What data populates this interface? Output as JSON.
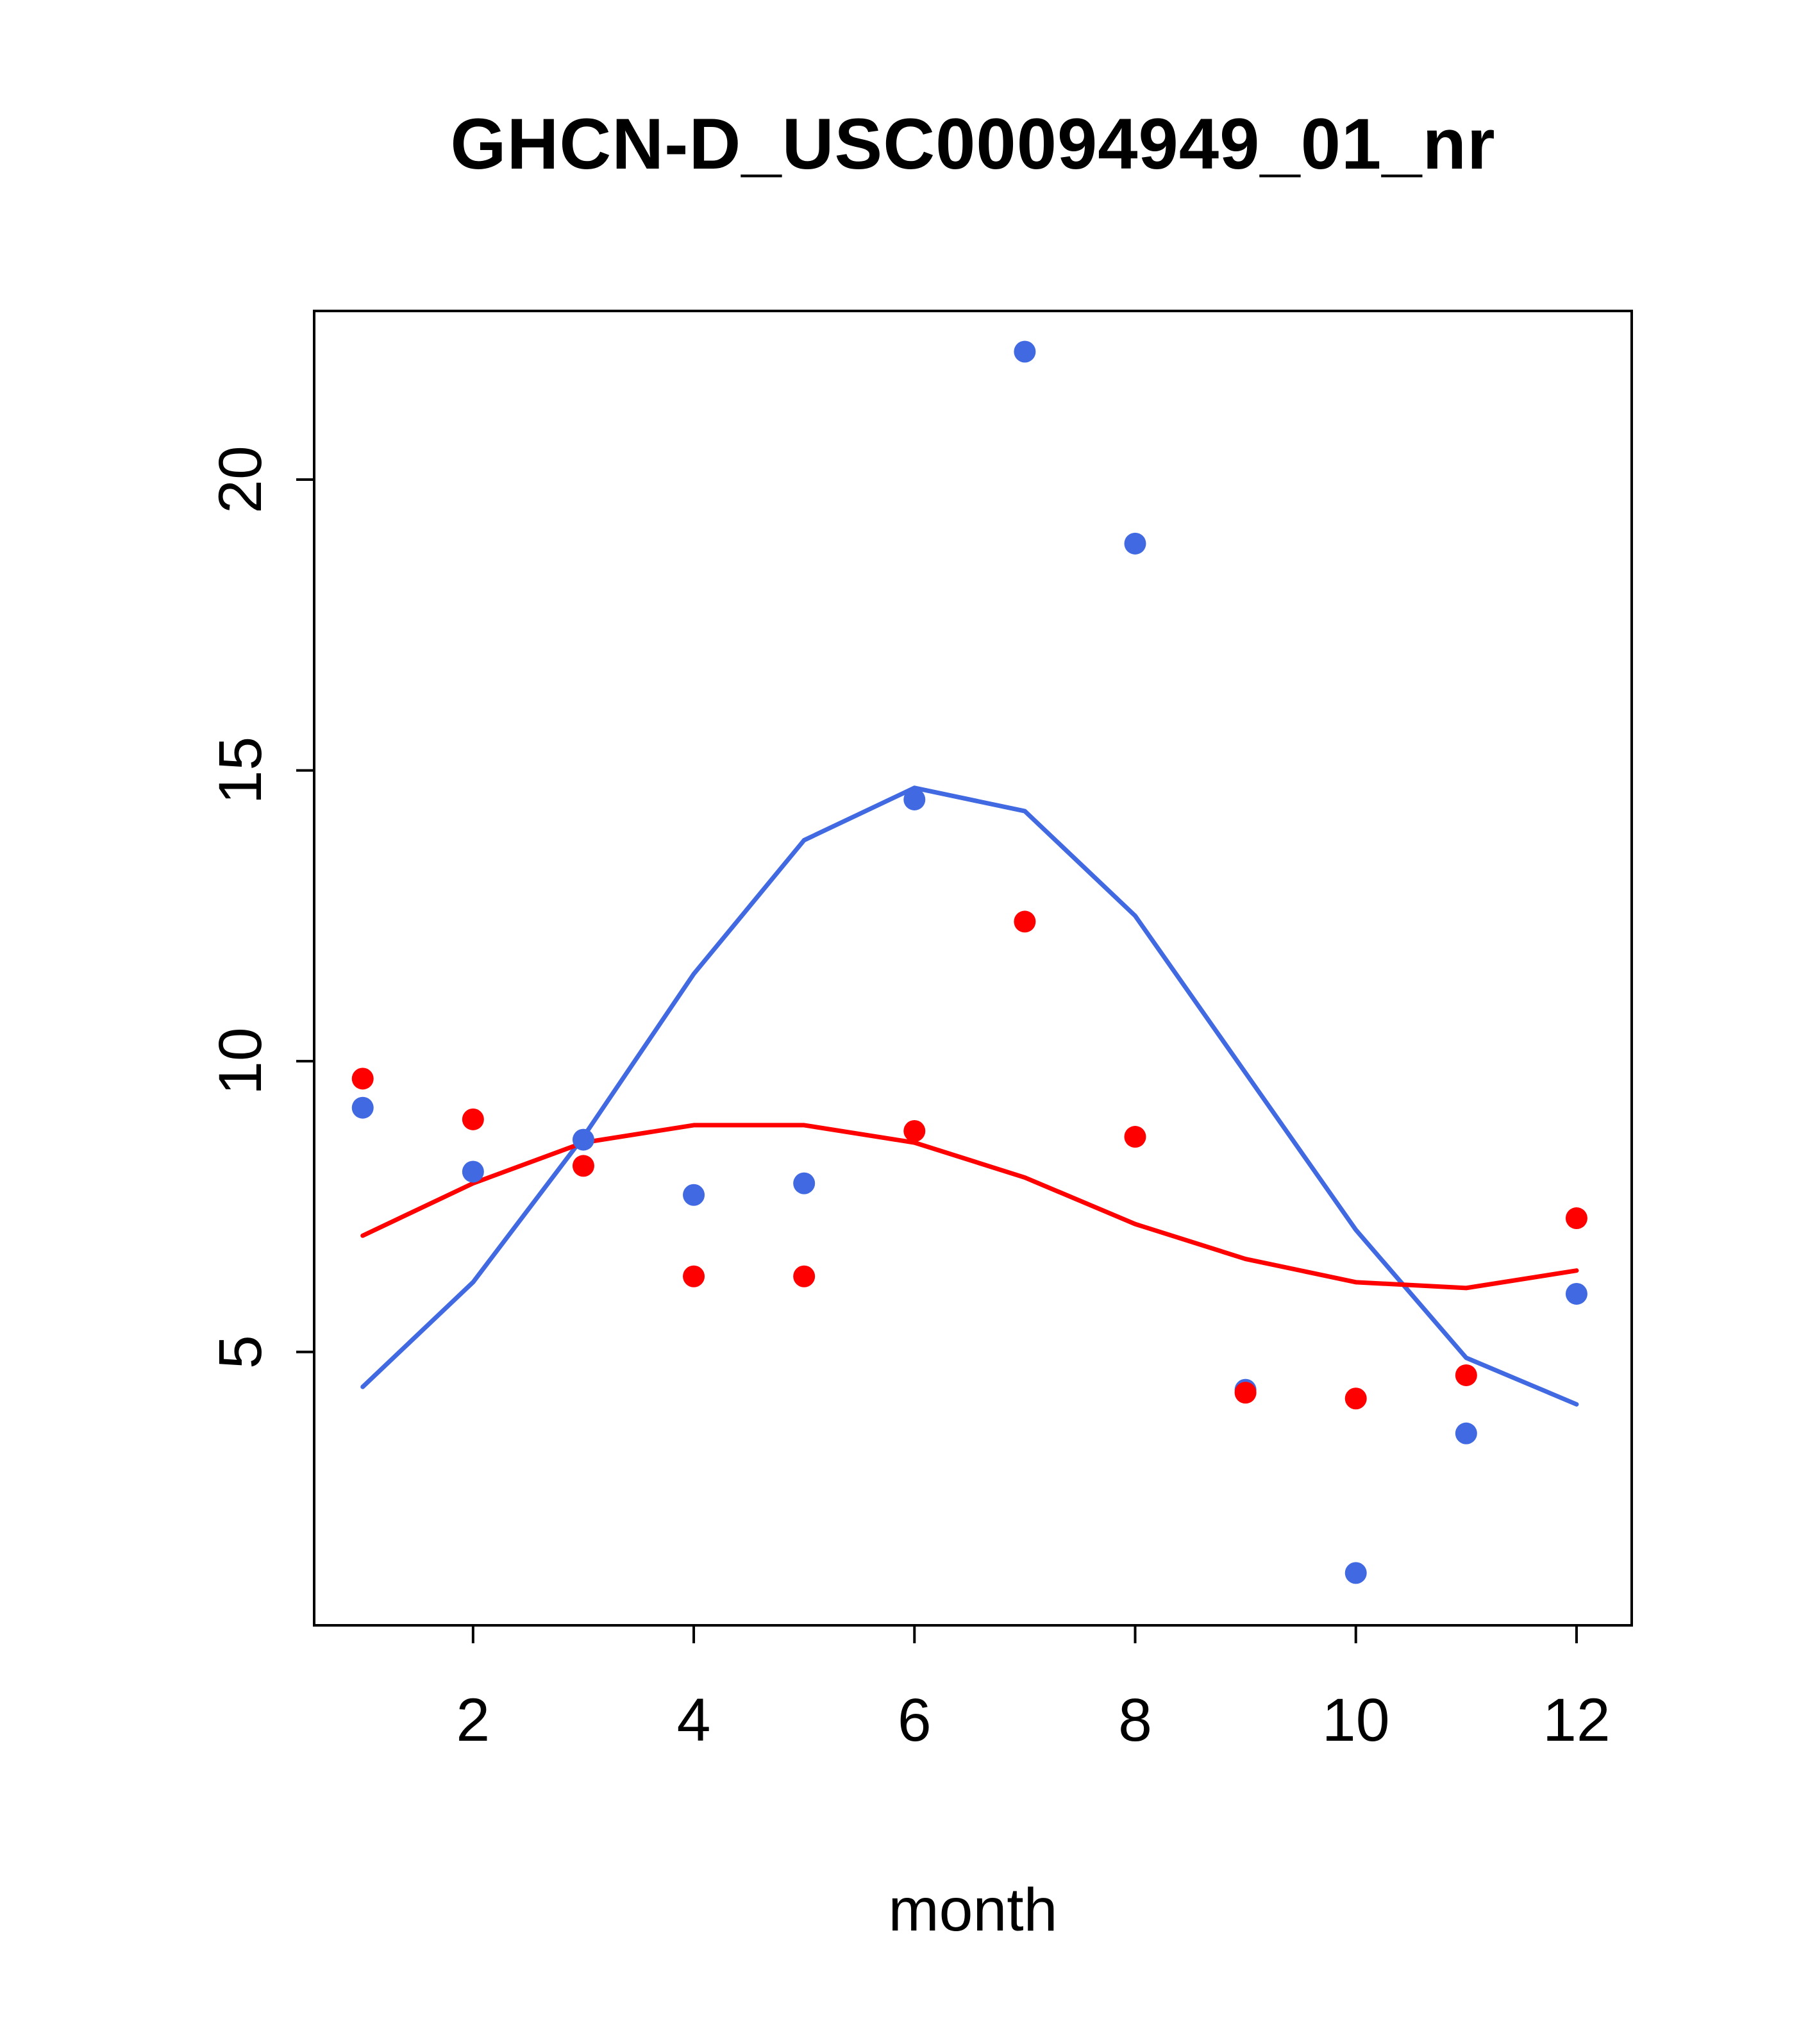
{
  "chart_data": {
    "type": "scatter",
    "title": "GHCN-D_USC00094949_01_nr",
    "xlabel": "month",
    "ylabel": "",
    "x": [
      1,
      2,
      3,
      4,
      5,
      6,
      7,
      8,
      9,
      10,
      11,
      12
    ],
    "series": [
      {
        "name": "blue-line",
        "kind": "line",
        "color": "#4169E1",
        "values": [
          4.4,
          6.2,
          8.7,
          11.5,
          13.8,
          14.7,
          14.3,
          12.5,
          9.8,
          7.1,
          4.9,
          4.1
        ]
      },
      {
        "name": "red-line",
        "kind": "line",
        "color": "#FF0000",
        "values": [
          7.0,
          7.9,
          8.6,
          8.9,
          8.9,
          8.6,
          8.0,
          7.2,
          6.6,
          6.2,
          6.1,
          6.4
        ]
      },
      {
        "name": "blue-points",
        "kind": "scatter",
        "color": "#4169E1",
        "values": [
          9.2,
          8.1,
          8.65,
          7.7,
          7.9,
          14.5,
          22.2,
          18.9,
          4.35,
          1.2,
          3.6,
          6.0
        ]
      },
      {
        "name": "red-points",
        "kind": "scatter",
        "color": "#FF0000",
        "values": [
          9.7,
          9.0,
          8.2,
          6.3,
          6.3,
          8.8,
          12.4,
          8.7,
          4.3,
          4.2,
          4.6,
          7.3
        ]
      }
    ],
    "xticks": [
      2,
      4,
      6,
      8,
      10,
      12
    ],
    "yticks": [
      5,
      10,
      15,
      20
    ],
    "xlim": [
      0.56,
      12.5
    ],
    "ylim": [
      0.3,
      22.9
    ],
    "grid": false,
    "legend": "none",
    "axis_color": "#000000"
  }
}
